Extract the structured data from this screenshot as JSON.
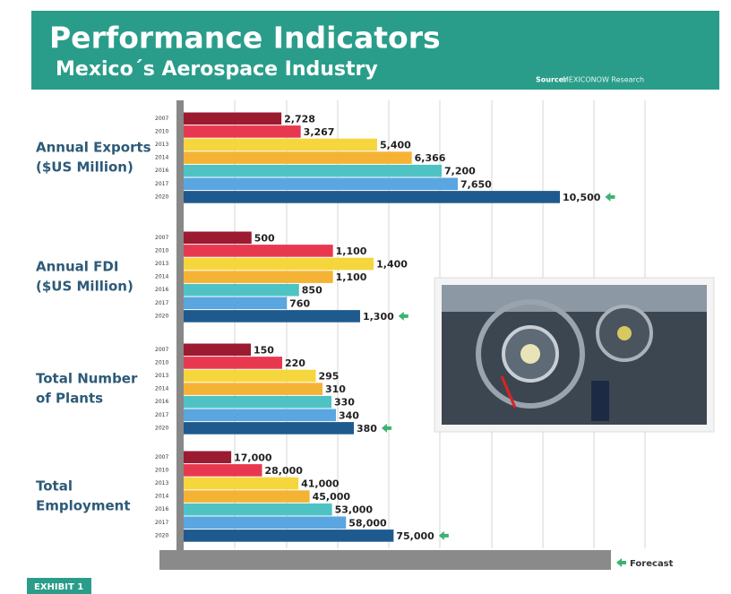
{
  "header": {
    "title": "Performance Indicators",
    "subtitle": "Mexico´s Aerospace Industry",
    "source_label": "Source:",
    "source": "MEXICONOW Research"
  },
  "legend": {
    "forecast": "Forecast"
  },
  "footer": {
    "exhibit": "EXHIBIT 1"
  },
  "chart_data": [
    {
      "type": "bar",
      "orientation": "horizontal",
      "title": [
        "Annual Exports",
        "($US Million)"
      ],
      "categories": [
        "2007",
        "2010",
        "2013",
        "2014",
        "2016",
        "2017",
        "2020"
      ],
      "values": [
        2728,
        3267,
        5400,
        6366,
        7200,
        7650,
        10500
      ],
      "value_labels": [
        "2,728",
        "3,267",
        "5,400",
        "6,366",
        "7,200",
        "7,650",
        "10,500"
      ],
      "colors": [
        "#9b1b30",
        "#e8384f",
        "#f5d63d",
        "#f5b335",
        "#4fc3c4",
        "#5aa6e0",
        "#1f5a8e"
      ],
      "xlim": [
        0,
        12500
      ]
    },
    {
      "type": "bar",
      "orientation": "horizontal",
      "title": [
        "Annual FDI",
        "($US Million)"
      ],
      "categories": [
        "2007",
        "2010",
        "2013",
        "2014",
        "2016",
        "2017",
        "2020"
      ],
      "values": [
        500,
        1100,
        1400,
        1100,
        850,
        760,
        1300
      ],
      "value_labels": [
        "500",
        "1,100",
        "1,400",
        "1,100",
        "850",
        "760",
        "1,300"
      ],
      "colors": [
        "#9b1b30",
        "#e8384f",
        "#f5d63d",
        "#f5b335",
        "#4fc3c4",
        "#5aa6e0",
        "#1f5a8e"
      ],
      "xlim": [
        0,
        3300
      ]
    },
    {
      "type": "bar",
      "orientation": "horizontal",
      "title": [
        "Total Number",
        "of Plants"
      ],
      "categories": [
        "2007",
        "2010",
        "2013",
        "2014",
        "2016",
        "2017",
        "2020"
      ],
      "values": [
        150,
        220,
        295,
        310,
        330,
        340,
        380
      ],
      "colors": [
        "#9b1b30",
        "#e8384f",
        "#f5d63d",
        "#f5b335",
        "#4fc3c4",
        "#5aa6e0",
        "#1f5a8e"
      ],
      "xlim": [
        0,
        1000
      ]
    },
    {
      "type": "bar",
      "orientation": "horizontal",
      "title": [
        "Total",
        "Employment"
      ],
      "categories": [
        "2007",
        "2010",
        "2013",
        "2014",
        "2016",
        "2017",
        "2020"
      ],
      "values": [
        17000,
        28000,
        41000,
        45000,
        53000,
        58000,
        75000
      ],
      "value_labels": [
        "17,000",
        "28,000",
        "41,000",
        "45,000",
        "53,000",
        "58,000",
        "75,000"
      ],
      "colors": [
        "#9b1b30",
        "#e8384f",
        "#f5d63d",
        "#f5b335",
        "#4fc3c4",
        "#5aa6e0",
        "#1f5a8e"
      ],
      "xlim": [
        0,
        160000
      ]
    }
  ]
}
